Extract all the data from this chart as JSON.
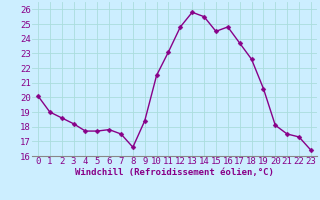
{
  "x": [
    0,
    1,
    2,
    3,
    4,
    5,
    6,
    7,
    8,
    9,
    10,
    11,
    12,
    13,
    14,
    15,
    16,
    17,
    18,
    19,
    20,
    21,
    22,
    23
  ],
  "y": [
    20.1,
    19.0,
    18.6,
    18.2,
    17.7,
    17.7,
    17.8,
    17.5,
    16.6,
    18.4,
    21.5,
    23.1,
    24.8,
    25.8,
    25.5,
    24.5,
    24.8,
    23.7,
    22.6,
    20.6,
    18.1,
    17.5,
    17.3,
    16.4
  ],
  "line_color": "#880088",
  "marker": "D",
  "markersize": 2.5,
  "linewidth": 1.0,
  "bg_color": "#cceeff",
  "grid_color": "#aadddd",
  "xlabel": "Windchill (Refroidissement éolien,°C)",
  "xlabel_fontsize": 6.5,
  "tick_fontsize": 6.5,
  "xlim": [
    -0.5,
    23.5
  ],
  "ylim": [
    16,
    26.5
  ],
  "yticks": [
    16,
    17,
    18,
    19,
    20,
    21,
    22,
    23,
    24,
    25,
    26
  ],
  "xticks": [
    0,
    1,
    2,
    3,
    4,
    5,
    6,
    7,
    8,
    9,
    10,
    11,
    12,
    13,
    14,
    15,
    16,
    17,
    18,
    19,
    20,
    21,
    22,
    23
  ],
  "text_color": "#880088",
  "spine_color": "#888888"
}
